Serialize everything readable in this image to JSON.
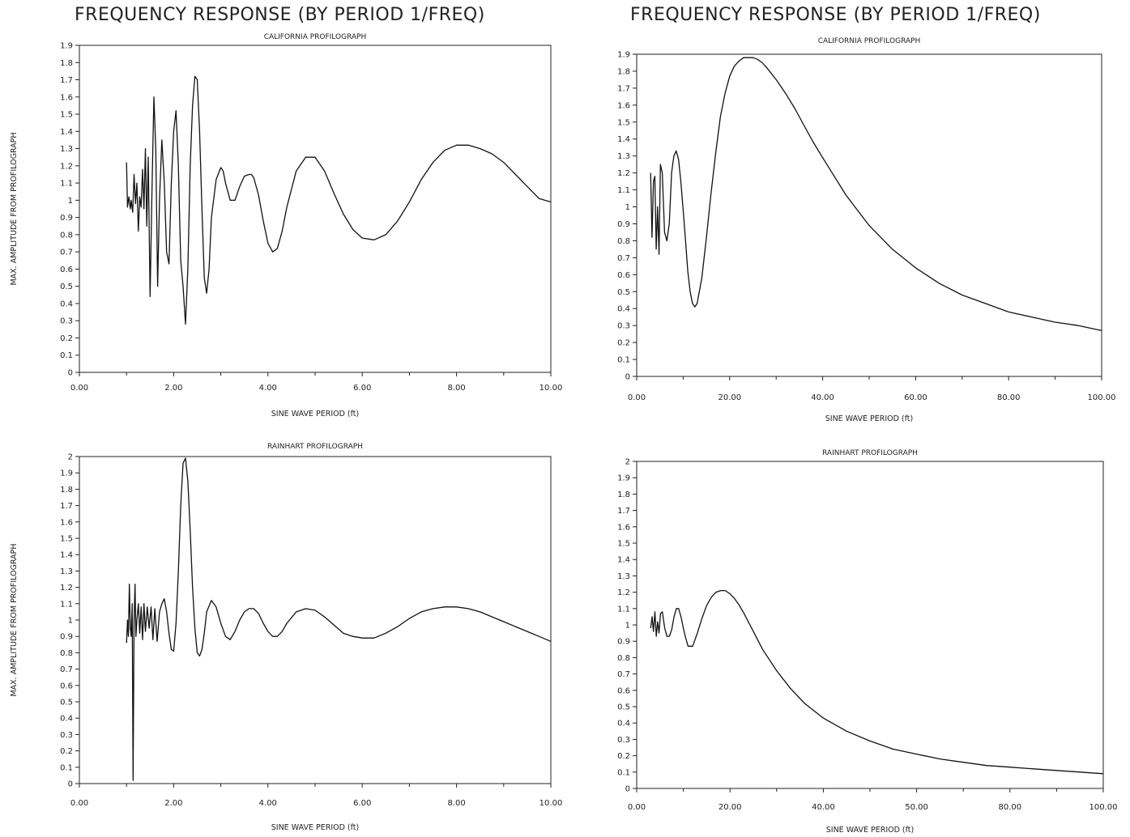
{
  "page": {
    "heading_left": "FREQUENCY RESPONSE (BY PERIOD 1/FREQ)",
    "heading_right": "FREQUENCY RESPONSE (BY PERIOD 1/FREQ)"
  },
  "chart_data": [
    {
      "type": "line",
      "title": "CALIFORNIA PROFILOGRAPH",
      "xlabel": "SINE WAVE PERIOD (ft)",
      "ylabel": "MAX. AMPLITUDE FROM PROFILOGRAPH",
      "xlim": [
        0,
        10
      ],
      "ylim": [
        0,
        1.9
      ],
      "xticks": [
        "0.00",
        "2.00",
        "4.00",
        "6.00",
        "8.00",
        "10.00"
      ],
      "yticks": [
        "0",
        "0.1",
        "0.2",
        "0.3",
        "0.4",
        "0.5",
        "0.6",
        "0.7",
        "0.8",
        "0.9",
        "1",
        "1.1",
        "1.2",
        "1.3",
        "1.4",
        "1.5",
        "1.6",
        "1.7",
        "1.8",
        "1.9"
      ],
      "grid": false,
      "series": [
        {
          "x": [
            1.0,
            1.02,
            1.05,
            1.08,
            1.1,
            1.13,
            1.16,
            1.19,
            1.22,
            1.25,
            1.28,
            1.31,
            1.34,
            1.37,
            1.4,
            1.43,
            1.46,
            1.5,
            1.54,
            1.58,
            1.62,
            1.66,
            1.7,
            1.75,
            1.8,
            1.85,
            1.9,
            1.95,
            2.0,
            2.05,
            2.1,
            2.15,
            2.2,
            2.25,
            2.3,
            2.35,
            2.4,
            2.45,
            2.5,
            2.55,
            2.6,
            2.65,
            2.7,
            2.75,
            2.8,
            2.9,
            3.0,
            3.05,
            3.1,
            3.2,
            3.3,
            3.4,
            3.5,
            3.6,
            3.65,
            3.7,
            3.8,
            3.9,
            4.0,
            4.1,
            4.2,
            4.3,
            4.4,
            4.6,
            4.8,
            5.0,
            5.2,
            5.4,
            5.6,
            5.8,
            6.0,
            6.25,
            6.5,
            6.75,
            7.0,
            7.25,
            7.5,
            7.75,
            8.0,
            8.25,
            8.5,
            8.75,
            9.0,
            9.25,
            9.5,
            9.75,
            10.0
          ],
          "y": [
            1.22,
            0.96,
            1.02,
            0.95,
            1.0,
            0.93,
            1.15,
            0.98,
            1.1,
            0.82,
            1.02,
            0.96,
            1.18,
            0.95,
            1.3,
            0.85,
            1.25,
            0.44,
            1.05,
            1.6,
            1.3,
            0.5,
            1.0,
            1.35,
            1.1,
            0.7,
            0.63,
            1.1,
            1.4,
            1.52,
            1.2,
            0.65,
            0.5,
            0.28,
            0.6,
            1.2,
            1.55,
            1.72,
            1.7,
            1.4,
            0.95,
            0.55,
            0.46,
            0.6,
            0.9,
            1.12,
            1.19,
            1.17,
            1.1,
            1.0,
            1.0,
            1.08,
            1.14,
            1.15,
            1.15,
            1.13,
            1.03,
            0.88,
            0.75,
            0.7,
            0.72,
            0.82,
            0.96,
            1.17,
            1.25,
            1.25,
            1.17,
            1.04,
            0.92,
            0.83,
            0.78,
            0.77,
            0.8,
            0.88,
            0.99,
            1.12,
            1.22,
            1.29,
            1.32,
            1.32,
            1.3,
            1.27,
            1.22,
            1.15,
            1.08,
            1.01,
            0.99
          ]
        }
      ]
    },
    {
      "type": "line",
      "title": "CALIFORNIA PROFILOGRAPH",
      "xlabel": "SINE WAVE PERIOD (ft)",
      "ylabel": "",
      "xlim": [
        0,
        100
      ],
      "ylim": [
        0,
        1.9
      ],
      "xticks": [
        "0.00",
        "20.00",
        "40.00",
        "60.00",
        "80.00",
        "100.00"
      ],
      "yticks": [
        "0",
        "0.1",
        "0.2",
        "0.3",
        "0.4",
        "0.5",
        "0.6",
        "0.7",
        "0.8",
        "0.9",
        "1",
        "1.1",
        "1.2",
        "1.3",
        "1.4",
        "1.5",
        "1.6",
        "1.7",
        "1.8",
        "1.9"
      ],
      "grid": false,
      "series": [
        {
          "x": [
            3.0,
            3.3,
            3.6,
            3.9,
            4.2,
            4.5,
            4.8,
            5.1,
            5.5,
            6.0,
            6.5,
            7.0,
            7.5,
            8.0,
            8.5,
            9.0,
            9.5,
            10.0,
            10.5,
            11.0,
            11.5,
            12.0,
            12.5,
            13.0,
            14.0,
            15.0,
            16.0,
            17.0,
            18.0,
            19.0,
            20.0,
            21.0,
            22.0,
            23.0,
            24.0,
            25.0,
            26.0,
            27.0,
            28.0,
            30.0,
            32.0,
            34.0,
            36.0,
            38.0,
            40.0,
            45.0,
            50.0,
            55.0,
            60.0,
            65.0,
            70.0,
            75.0,
            80.0,
            85.0,
            90.0,
            95.0,
            100.0
          ],
          "y": [
            1.2,
            0.82,
            1.15,
            1.18,
            0.75,
            1.0,
            0.72,
            1.25,
            1.2,
            0.85,
            0.8,
            0.9,
            1.2,
            1.3,
            1.33,
            1.28,
            1.15,
            0.98,
            0.8,
            0.62,
            0.5,
            0.43,
            0.41,
            0.43,
            0.58,
            0.82,
            1.08,
            1.32,
            1.53,
            1.67,
            1.77,
            1.83,
            1.86,
            1.88,
            1.88,
            1.88,
            1.87,
            1.85,
            1.82,
            1.75,
            1.67,
            1.58,
            1.48,
            1.38,
            1.29,
            1.07,
            0.89,
            0.75,
            0.64,
            0.55,
            0.48,
            0.43,
            0.38,
            0.35,
            0.32,
            0.3,
            0.27
          ]
        }
      ]
    },
    {
      "type": "line",
      "title": "RAINHART PROFILOGRAPH",
      "xlabel": "SINE WAVE PERIOD (ft)",
      "ylabel": "MAX. AMPLITUDE FROM PROFILOGRAPH",
      "xlim": [
        0,
        10
      ],
      "ylim": [
        0,
        2
      ],
      "xticks": [
        "0.00",
        "2.00",
        "4.00",
        "6.00",
        "8.00",
        "10.00"
      ],
      "yticks": [
        "0",
        "0.1",
        "0.2",
        "0.3",
        "0.4",
        "0.5",
        "0.6",
        "0.7",
        "0.8",
        "0.9",
        "1",
        "1.1",
        "1.2",
        "1.3",
        "1.4",
        "1.5",
        "1.6",
        "1.7",
        "1.8",
        "1.9",
        "2"
      ],
      "grid": false,
      "series": [
        {
          "x": [
            1.0,
            1.02,
            1.04,
            1.06,
            1.08,
            1.1,
            1.12,
            1.14,
            1.16,
            1.18,
            1.2,
            1.22,
            1.25,
            1.28,
            1.31,
            1.34,
            1.37,
            1.4,
            1.44,
            1.48,
            1.52,
            1.56,
            1.6,
            1.65,
            1.7,
            1.75,
            1.8,
            1.85,
            1.9,
            1.95,
            2.0,
            2.05,
            2.1,
            2.15,
            2.2,
            2.25,
            2.3,
            2.35,
            2.4,
            2.45,
            2.5,
            2.55,
            2.6,
            2.65,
            2.7,
            2.8,
            2.9,
            3.0,
            3.1,
            3.2,
            3.3,
            3.4,
            3.5,
            3.6,
            3.7,
            3.8,
            3.9,
            4.0,
            4.1,
            4.2,
            4.3,
            4.4,
            4.6,
            4.8,
            5.0,
            5.2,
            5.4,
            5.6,
            5.8,
            6.0,
            6.25,
            6.5,
            6.75,
            7.0,
            7.25,
            7.5,
            7.75,
            8.0,
            8.25,
            8.5,
            8.75,
            9.0,
            9.25,
            9.5,
            9.75,
            10.0
          ],
          "y": [
            0.86,
            1.0,
            0.9,
            1.22,
            0.95,
            0.9,
            1.1,
            0.02,
            1.0,
            1.22,
            0.9,
            1.0,
            1.1,
            0.92,
            1.08,
            0.88,
            1.1,
            0.93,
            1.08,
            0.95,
            1.08,
            0.88,
            1.07,
            0.87,
            1.05,
            1.1,
            1.13,
            1.05,
            0.92,
            0.82,
            0.81,
            0.98,
            1.3,
            1.7,
            1.96,
            1.99,
            1.85,
            1.55,
            1.2,
            0.95,
            0.8,
            0.78,
            0.82,
            0.92,
            1.05,
            1.12,
            1.08,
            0.98,
            0.9,
            0.88,
            0.93,
            1.0,
            1.05,
            1.07,
            1.07,
            1.04,
            0.98,
            0.93,
            0.9,
            0.9,
            0.93,
            0.98,
            1.05,
            1.07,
            1.06,
            1.02,
            0.97,
            0.92,
            0.9,
            0.89,
            0.89,
            0.92,
            0.96,
            1.01,
            1.05,
            1.07,
            1.08,
            1.08,
            1.07,
            1.05,
            1.02,
            0.99,
            0.96,
            0.93,
            0.9,
            0.87
          ]
        }
      ]
    },
    {
      "type": "line",
      "title": "RAINHART PROFILOGRAPH",
      "xlabel": "SINE WAVE PERIOD (ft)",
      "ylabel": "",
      "xlim": [
        0,
        100
      ],
      "ylim": [
        0,
        2
      ],
      "xticks": [
        "0.00",
        "20.00",
        "40.00",
        "50.00",
        "80.00",
        "100.00"
      ],
      "yticks": [
        "0",
        "0.1",
        "0.2",
        "0.3",
        "0.4",
        "0.5",
        "0.6",
        "0.7",
        "0.8",
        "0.9",
        "1",
        "1.1",
        "1.2",
        "1.3",
        "1.4",
        "1.5",
        "1.6",
        "1.7",
        "1.8",
        "1.9",
        "2"
      ],
      "grid": false,
      "series": [
        {
          "x": [
            3.0,
            3.3,
            3.6,
            3.9,
            4.2,
            4.5,
            4.8,
            5.1,
            5.5,
            6.0,
            6.5,
            7.0,
            7.5,
            8.0,
            8.5,
            9.0,
            9.5,
            10.0,
            10.5,
            11.0,
            12.0,
            13.0,
            14.0,
            15.0,
            16.0,
            17.0,
            18.0,
            19.0,
            20.0,
            21.0,
            22.0,
            23.0,
            25.0,
            27.0,
            30.0,
            33.0,
            36.0,
            40.0,
            45.0,
            50.0,
            55.0,
            60.0,
            65.0,
            70.0,
            75.0,
            80.0,
            85.0,
            90.0,
            95.0,
            100.0
          ],
          "y": [
            0.98,
            1.05,
            0.96,
            1.08,
            0.93,
            1.02,
            0.95,
            1.07,
            1.08,
            0.98,
            0.93,
            0.93,
            0.97,
            1.05,
            1.1,
            1.1,
            1.05,
            0.98,
            0.92,
            0.87,
            0.87,
            0.95,
            1.04,
            1.12,
            1.17,
            1.2,
            1.21,
            1.21,
            1.19,
            1.16,
            1.12,
            1.07,
            0.96,
            0.85,
            0.72,
            0.61,
            0.52,
            0.43,
            0.35,
            0.29,
            0.24,
            0.21,
            0.18,
            0.16,
            0.14,
            0.13,
            0.12,
            0.11,
            0.1,
            0.09
          ]
        }
      ]
    }
  ]
}
